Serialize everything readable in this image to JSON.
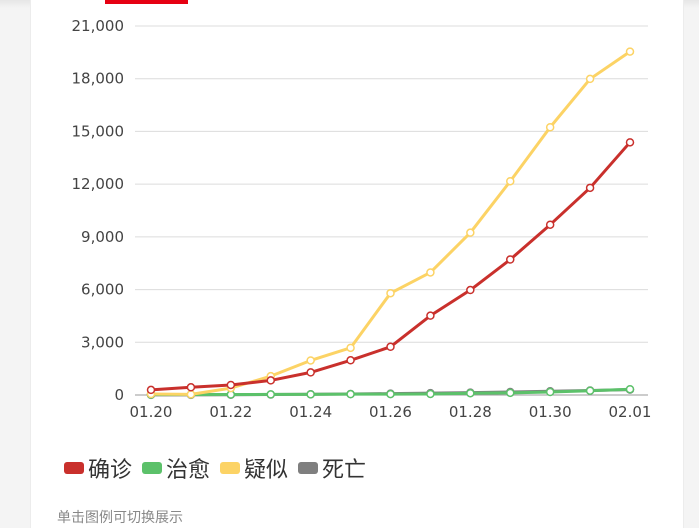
{
  "chart_data": {
    "type": "line",
    "title": "",
    "xlabel": "",
    "ylabel": "",
    "x": [
      "01.20",
      "01.21",
      "01.22",
      "01.23",
      "01.24",
      "01.25",
      "01.26",
      "01.27",
      "01.28",
      "01.29",
      "01.30",
      "01.31",
      "02.01"
    ],
    "x_tick_labels": [
      "01.20",
      "01.22",
      "01.24",
      "01.26",
      "01.28",
      "01.30",
      "02.01"
    ],
    "y_tick_labels": [
      "0",
      "3,000",
      "6,000",
      "9,000",
      "12,000",
      "15,000",
      "18,000",
      "21,000"
    ],
    "ylim": [
      0,
      21000
    ],
    "y_ticks": [
      0,
      3000,
      6000,
      9000,
      12000,
      15000,
      18000,
      21000
    ],
    "grid": true,
    "legend_position": "bottom-left",
    "series": [
      {
        "name": "确诊",
        "color": "#c9302c",
        "values": [
          291,
          440,
          571,
          830,
          1287,
          1975,
          2744,
          4515,
          5974,
          7711,
          9692,
          11791,
          14380
        ]
      },
      {
        "name": "治愈",
        "color": "#5cc16a",
        "values": [
          25,
          28,
          28,
          34,
          38,
          49,
          51,
          60,
          103,
          124,
          171,
          243,
          328
        ]
      },
      {
        "name": "疑似",
        "color": "#fcd365",
        "values": [
          54,
          37,
          393,
          1072,
          1965,
          2684,
          5794,
          6973,
          9239,
          12167,
          15238,
          17988,
          19544
        ]
      },
      {
        "name": "死亡",
        "color": "#7f7f7f",
        "values": [
          6,
          9,
          17,
          25,
          41,
          56,
          80,
          106,
          132,
          170,
          213,
          259,
          304
        ]
      }
    ]
  },
  "legend_hint": "单击图例可切换展示"
}
